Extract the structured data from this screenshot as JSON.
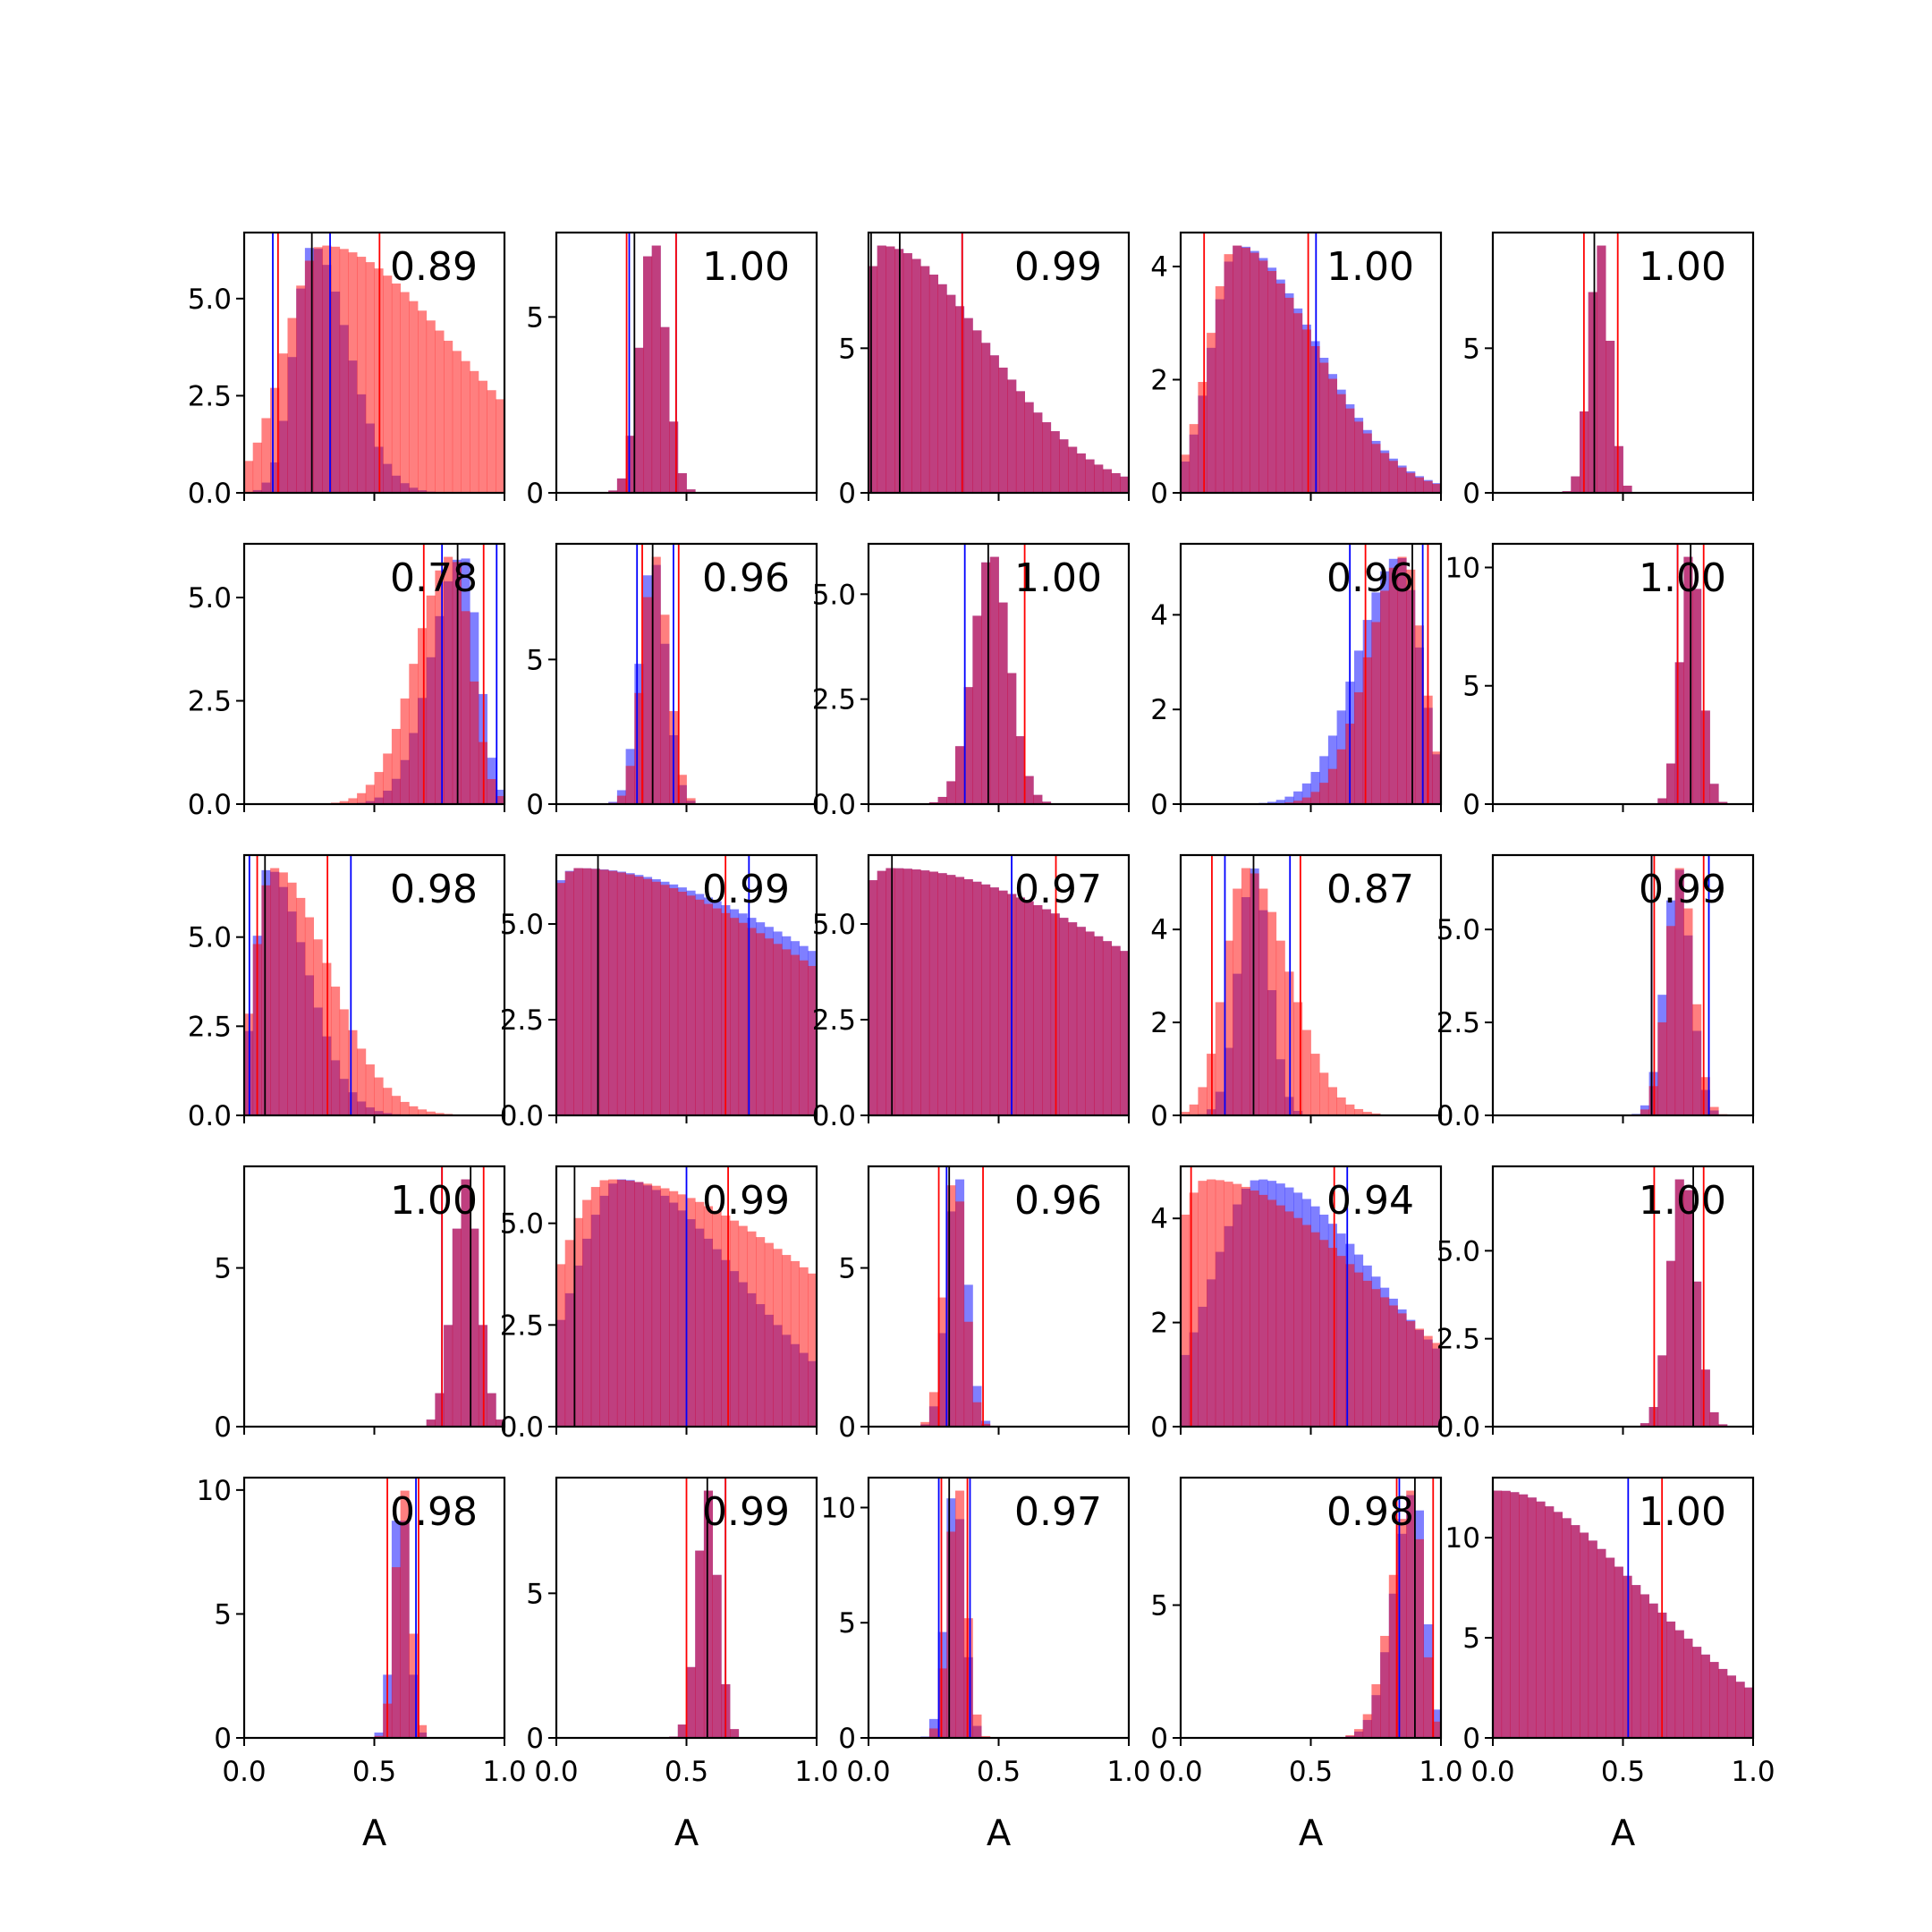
{
  "colors": {
    "blue": "#0000ff",
    "red": "#ff0000",
    "black": "#000000",
    "overlap": "#bf3f7f"
  },
  "chart_data": {
    "type": "histogram_grid",
    "rows": 5,
    "cols": 5,
    "xlabel": "A",
    "xlim": [
      0,
      1
    ],
    "xticks": [
      "0.0",
      "0.5",
      "1.0"
    ],
    "alpha": 0.5,
    "panels": [
      {
        "annotation": "0.89",
        "ymax": 6.7,
        "yticks": [
          "0.0",
          "2.5",
          "5.0"
        ],
        "ytick_values": [
          0,
          2.5,
          5
        ],
        "blue": {
          "mean": 0.26,
          "sd": 0.07,
          "skew": 1
        },
        "red": {
          "mean": 0.3,
          "sd": 0.14,
          "skew": 2.5
        },
        "vlines": {
          "blue": [
            0.11,
            0.33
          ],
          "red": [
            0.13,
            0.52
          ],
          "black": [
            0.26
          ]
        }
      },
      {
        "annotation": "1.00",
        "ymax": 7.4,
        "yticks": [
          "0",
          "5"
        ],
        "ytick_values": [
          0,
          5
        ],
        "blue": {
          "mean": 0.37,
          "sd": 0.05,
          "skew": 0
        },
        "red": {
          "mean": 0.37,
          "sd": 0.05,
          "skew": 0
        },
        "vlines": {
          "blue": [
            0.28,
            0.46
          ],
          "red": [
            0.27,
            0.46
          ],
          "black": [
            0.3
          ]
        }
      },
      {
        "annotation": "0.99",
        "ymax": 9.0,
        "yticks": [
          "0",
          "5"
        ],
        "ytick_values": [
          0,
          5
        ],
        "blue": {
          "mean": 0.05,
          "sd": 0.08,
          "skew": 4
        },
        "red": {
          "mean": 0.05,
          "sd": 0.08,
          "skew": 4
        },
        "vlines": {
          "blue": [
            0.36
          ],
          "red": [
            0.36
          ],
          "black": [
            0.01,
            0.12
          ]
        }
      },
      {
        "annotation": "1.00",
        "ymax": 4.6,
        "yticks": [
          "0",
          "2",
          "4"
        ],
        "ytick_values": [
          0,
          2,
          4
        ],
        "blue": {
          "mean": 0.22,
          "sd": 0.1,
          "skew": 2
        },
        "red": {
          "mean": 0.21,
          "sd": 0.1,
          "skew": 2
        },
        "vlines": {
          "blue": [
            0.52
          ],
          "red": [
            0.09,
            0.49
          ],
          "black": []
        }
      },
      {
        "annotation": "1.00",
        "ymax": 9.0,
        "yticks": [
          "0",
          "5"
        ],
        "ytick_values": [
          0,
          5
        ],
        "blue": {
          "mean": 0.41,
          "sd": 0.04,
          "skew": 0
        },
        "red": {
          "mean": 0.41,
          "sd": 0.04,
          "skew": 0
        },
        "vlines": {
          "blue": [],
          "red": [
            0.35,
            0.48
          ],
          "black": [
            0.39
          ]
        }
      },
      {
        "annotation": "0.78",
        "ymax": 6.3,
        "yticks": [
          "0.0",
          "2.5",
          "5.0"
        ],
        "ytick_values": [
          0,
          2.5,
          5
        ],
        "blue": {
          "mean": 0.84,
          "sd": 0.06,
          "skew": -1
        },
        "red": {
          "mean": 0.8,
          "sd": 0.07,
          "skew": -1
        },
        "vlines": {
          "blue": [
            0.76,
            0.97
          ],
          "red": [
            0.69,
            0.92
          ],
          "black": [
            0.82
          ]
        }
      },
      {
        "annotation": "0.96",
        "ymax": 9.0,
        "yticks": [
          "0",
          "5"
        ],
        "ytick_values": [
          0,
          5
        ],
        "blue": {
          "mean": 0.37,
          "sd": 0.05,
          "skew": 0
        },
        "red": {
          "mean": 0.38,
          "sd": 0.05,
          "skew": 0
        },
        "vlines": {
          "blue": [
            0.31,
            0.45
          ],
          "red": [
            0.33,
            0.47
          ],
          "black": [
            0.37
          ]
        }
      },
      {
        "annotation": "1.00",
        "ymax": 6.2,
        "yticks": [
          "0.0",
          "2.5",
          "5.0"
        ],
        "ytick_values": [
          0,
          2.5,
          5
        ],
        "blue": {
          "mean": 0.47,
          "sd": 0.07,
          "skew": 0
        },
        "red": {
          "mean": 0.47,
          "sd": 0.07,
          "skew": 0
        },
        "vlines": {
          "blue": [
            0.37
          ],
          "red": [
            0.6
          ],
          "black": [
            0.46
          ]
        }
      },
      {
        "annotation": "0.96",
        "ymax": 5.5,
        "yticks": [
          "0",
          "2",
          "4"
        ],
        "ytick_values": [
          0,
          2,
          4
        ],
        "blue": {
          "mean": 0.84,
          "sd": 0.08,
          "skew": -1
        },
        "red": {
          "mean": 0.86,
          "sd": 0.07,
          "skew": -1
        },
        "vlines": {
          "blue": [
            0.65,
            0.93
          ],
          "red": [
            0.71,
            0.95
          ],
          "black": [
            0.89
          ]
        }
      },
      {
        "annotation": "1.00",
        "ymax": 11.0,
        "yticks": [
          "0",
          "5",
          "10"
        ],
        "ytick_values": [
          0,
          5,
          10
        ],
        "blue": {
          "mean": 0.76,
          "sd": 0.04,
          "skew": 0
        },
        "red": {
          "mean": 0.76,
          "sd": 0.04,
          "skew": 0
        },
        "vlines": {
          "blue": [
            0.71
          ],
          "red": [
            0.71,
            0.81
          ],
          "black": [
            0.76
          ]
        }
      },
      {
        "annotation": "0.98",
        "ymax": 7.3,
        "yticks": [
          "0.0",
          "2.5",
          "5.0"
        ],
        "ytick_values": [
          0,
          2.5,
          5
        ],
        "blue": {
          "mean": 0.09,
          "sd": 0.05,
          "skew": 2
        },
        "red": {
          "mean": 0.11,
          "sd": 0.07,
          "skew": 2
        },
        "vlines": {
          "blue": [
            0.02,
            0.41
          ],
          "red": [
            0.05,
            0.32
          ],
          "black": [
            0.08
          ]
        }
      },
      {
        "annotation": "0.99",
        "ymax": 6.8,
        "yticks": [
          "0.0",
          "2.5",
          "5.0"
        ],
        "ytick_values": [
          0,
          2.5,
          5
        ],
        "blue": {
          "mean": 0.08,
          "sd": 0.2,
          "skew": 4
        },
        "red": {
          "mean": 0.08,
          "sd": 0.18,
          "skew": 4
        },
        "vlines": {
          "blue": [
            0.74
          ],
          "red": [
            0.65
          ],
          "black": [
            0.16
          ]
        }
      },
      {
        "annotation": "0.97",
        "ymax": 6.8,
        "yticks": [
          "0.0",
          "2.5",
          "5.0"
        ],
        "ytick_values": [
          0,
          2.5,
          5
        ],
        "blue": {
          "mean": 0.08,
          "sd": 0.2,
          "skew": 4
        },
        "red": {
          "mean": 0.08,
          "sd": 0.2,
          "skew": 4
        },
        "vlines": {
          "blue": [
            0.55
          ],
          "red": [
            0.72
          ],
          "black": [
            0.09
          ]
        }
      },
      {
        "annotation": "0.87",
        "ymax": 5.6,
        "yticks": [
          "0",
          "2",
          "4"
        ],
        "ytick_values": [
          0,
          2,
          4
        ],
        "blue": {
          "mean": 0.28,
          "sd": 0.06,
          "skew": 0
        },
        "red": {
          "mean": 0.25,
          "sd": 0.08,
          "skew": 1
        },
        "vlines": {
          "blue": [
            0.17,
            0.42
          ],
          "red": [
            0.12,
            0.46
          ],
          "black": [
            0.28
          ]
        }
      },
      {
        "annotation": "0.99",
        "ymax": 7.0,
        "yticks": [
          "0.0",
          "2.5",
          "5.0"
        ],
        "ytick_values": [
          0,
          2.5,
          5
        ],
        "blue": {
          "mean": 0.71,
          "sd": 0.05,
          "skew": 0
        },
        "red": {
          "mean": 0.72,
          "sd": 0.05,
          "skew": 0
        },
        "vlines": {
          "blue": [
            0.61,
            0.83
          ],
          "red": [
            0.62,
            0.81
          ],
          "black": [
            0.61
          ]
        }
      },
      {
        "annotation": "1.00",
        "ymax": 8.2,
        "yticks": [
          "0",
          "5"
        ],
        "ytick_values": [
          0,
          5
        ],
        "blue": {
          "mean": 0.85,
          "sd": 0.05,
          "skew": 0
        },
        "red": {
          "mean": 0.85,
          "sd": 0.05,
          "skew": 0
        },
        "vlines": {
          "blue": [
            0.76
          ],
          "red": [
            0.76,
            0.92
          ],
          "black": [
            0.87
          ]
        }
      },
      {
        "annotation": "0.99",
        "ymax": 6.4,
        "yticks": [
          "0.0",
          "2.5",
          "5.0"
        ],
        "ytick_values": [
          0,
          2.5,
          5
        ],
        "blue": {
          "mean": 0.25,
          "sd": 0.18,
          "skew": 1.5
        },
        "red": {
          "mean": 0.2,
          "sd": 0.2,
          "skew": 3
        },
        "vlines": {
          "blue": [
            0.5
          ],
          "red": [
            0.66
          ],
          "black": [
            0.07
          ]
        }
      },
      {
        "annotation": "0.96",
        "ymax": 8.2,
        "yticks": [
          "0",
          "5"
        ],
        "ytick_values": [
          0,
          5
        ],
        "blue": {
          "mean": 0.34,
          "sd": 0.04,
          "skew": 0
        },
        "red": {
          "mean": 0.33,
          "sd": 0.04,
          "skew": 0
        },
        "vlines": {
          "blue": [
            0.3
          ],
          "red": [
            0.27,
            0.44
          ],
          "black": [
            0.31
          ]
        }
      },
      {
        "annotation": "0.94",
        "ymax": 5.0,
        "yticks": [
          "0",
          "2",
          "4"
        ],
        "ytick_values": [
          0,
          2,
          4
        ],
        "blue": {
          "mean": 0.3,
          "sd": 0.18,
          "skew": 1.5
        },
        "red": {
          "mean": 0.1,
          "sd": 0.15,
          "skew": 3
        },
        "vlines": {
          "blue": [
            0.64
          ],
          "red": [
            0.04,
            0.59
          ],
          "black": []
        }
      },
      {
        "annotation": "1.00",
        "ymax": 7.4,
        "yticks": [
          "0.0",
          "2.5",
          "5.0"
        ],
        "ytick_values": [
          0,
          2.5,
          5
        ],
        "blue": {
          "mean": 0.73,
          "sd": 0.05,
          "skew": 0
        },
        "red": {
          "mean": 0.73,
          "sd": 0.05,
          "skew": 0
        },
        "vlines": {
          "blue": [],
          "red": [
            0.62,
            0.81
          ],
          "black": [
            0.77
          ]
        }
      },
      {
        "annotation": "0.98",
        "ymax": 10.5,
        "yticks": [
          "0",
          "5",
          "10"
        ],
        "ytick_values": [
          0,
          5,
          10
        ],
        "blue": {
          "mean": 0.6,
          "sd": 0.03,
          "skew": 0
        },
        "red": {
          "mean": 0.61,
          "sd": 0.03,
          "skew": 0
        },
        "vlines": {
          "blue": [
            0.66
          ],
          "red": [
            0.55,
            0.67
          ],
          "black": []
        }
      },
      {
        "annotation": "0.99",
        "ymax": 9.0,
        "yticks": [
          "0",
          "5"
        ],
        "ytick_values": [
          0,
          5
        ],
        "blue": {
          "mean": 0.58,
          "sd": 0.04,
          "skew": 0
        },
        "red": {
          "mean": 0.58,
          "sd": 0.04,
          "skew": 0
        },
        "vlines": {
          "blue": [
            0.65
          ],
          "red": [
            0.5,
            0.65
          ],
          "black": [
            0.58
          ]
        }
      },
      {
        "annotation": "0.97",
        "ymax": 11.3,
        "yticks": [
          "0",
          "5",
          "10"
        ],
        "ytick_values": [
          0,
          5,
          10
        ],
        "blue": {
          "mean": 0.33,
          "sd": 0.035,
          "skew": 0
        },
        "red": {
          "mean": 0.34,
          "sd": 0.035,
          "skew": 0
        },
        "vlines": {
          "blue": [
            0.27,
            0.39
          ],
          "red": [
            0.28,
            0.38
          ],
          "black": [
            0.31
          ]
        }
      },
      {
        "annotation": "0.98",
        "ymax": 9.8,
        "yticks": [
          "0",
          "5"
        ],
        "ytick_values": [
          0,
          5
        ],
        "blue": {
          "mean": 0.9,
          "sd": 0.04,
          "skew": -1
        },
        "red": {
          "mean": 0.89,
          "sd": 0.04,
          "skew": -1
        },
        "vlines": {
          "blue": [
            0.84
          ],
          "red": [
            0.83,
            0.97
          ],
          "black": [
            0.9
          ]
        }
      },
      {
        "annotation": "1.00",
        "ymax": 13.0,
        "yticks": [
          "0",
          "5",
          "10"
        ],
        "ytick_values": [
          0,
          5,
          10
        ],
        "blue": {
          "mean": 0.02,
          "sd": 0.09,
          "skew": 5
        },
        "red": {
          "mean": 0.02,
          "sd": 0.09,
          "skew": 5
        },
        "vlines": {
          "blue": [
            0.52
          ],
          "red": [
            0.65
          ],
          "black": []
        }
      }
    ]
  }
}
